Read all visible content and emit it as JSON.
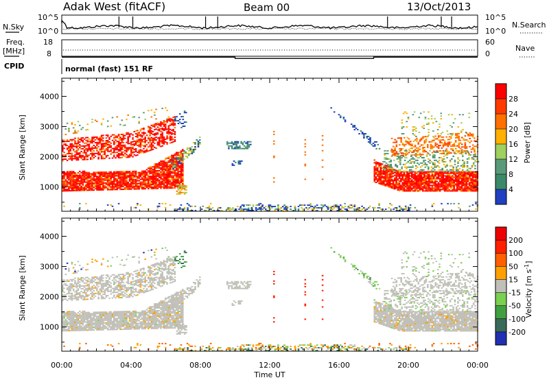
{
  "header": {
    "site": "Adak West (fitACF)",
    "beam": "Beam 00",
    "date": "13/Oct/2013"
  },
  "chart_data": [
    {
      "name": "nsky-nsearch",
      "type": "line",
      "left_label": "N.Sky",
      "right_label": "N.Search",
      "left_ticks": [
        "10^5",
        "10^0"
      ],
      "right_ticks": [
        "10^5",
        "10^0"
      ]
    },
    {
      "name": "freq-nave",
      "type": "line",
      "left_label_line1": "Freq.",
      "left_label_line2": "[MHz]",
      "right_label": "Nave",
      "left_ticks": [
        "18",
        "8"
      ],
      "right_ticks": [
        "60",
        "0"
      ],
      "freq_mhz": {
        "x_hours": [
          0,
          10,
          10,
          18,
          18,
          24
        ],
        "values": [
          11.0,
          11.0,
          10.2,
          10.2,
          11.0,
          11.0
        ]
      }
    },
    {
      "name": "cpid",
      "label": "CPID",
      "text": "normal (fast) 151 RF"
    },
    {
      "name": "power",
      "type": "heatmap",
      "ylabel": "Slant Range [km]",
      "yticks": [
        1000,
        2000,
        3000,
        4000
      ],
      "ylim": [
        200,
        4600
      ],
      "xlim": [
        0,
        24
      ],
      "colorbar": {
        "label": "Power [dB]",
        "ticks": [
          "4",
          "8",
          "12",
          "16",
          "20",
          "24",
          "28"
        ],
        "range": [
          0,
          32
        ]
      }
    },
    {
      "name": "velocity",
      "type": "heatmap",
      "ylabel": "Slant Range [km]",
      "yticks": [
        1000,
        2000,
        3000,
        4000
      ],
      "ylim": [
        200,
        4600
      ],
      "xlim": [
        0,
        24
      ],
      "colorbar": {
        "label": "Velocity [m s",
        "label_sup": "-1",
        "label_end": "]",
        "ticks": [
          "200",
          "100",
          "50",
          "15",
          "-15",
          "-50",
          "-100",
          "-200"
        ]
      }
    }
  ],
  "x_axis": {
    "label": "Time UT",
    "ticks": [
      "00:00",
      "04:00",
      "08:00",
      "12:00",
      "16:00",
      "20:00",
      "00:00"
    ]
  },
  "colors": {
    "power_scale": [
      "#2040c0",
      "#3a8a6a",
      "#5a9a7a",
      "#9fd060",
      "#ffb000",
      "#ff7000",
      "#ff3a00",
      "#ff0000"
    ],
    "velocity_scale": [
      "#2030b0",
      "#3a6a5a",
      "#40a040",
      "#7ad050",
      "#c0c0b8",
      "#ffa000",
      "#ff6000",
      "#ff2000",
      "#ee0000"
    ]
  }
}
